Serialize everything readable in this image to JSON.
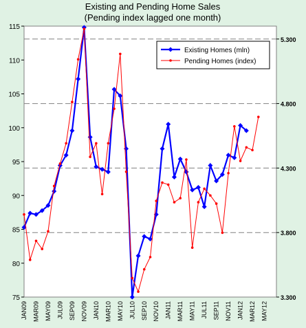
{
  "chart_data": {
    "type": "line",
    "title": "Existing and Pending Home Sales",
    "subtitle": "(Pending index lagged one month)",
    "categories": [
      "JAN09",
      null,
      "MAR09",
      null,
      "MAY09",
      null,
      "JUL09",
      null,
      "SEP09",
      null,
      "NOV09",
      null,
      "JAN10",
      null,
      "MAR10",
      null,
      "MAY10",
      null,
      "JUL10",
      null,
      "SEP10",
      null,
      "NOV10",
      null,
      "JAN11",
      null,
      "MAR11",
      null,
      "MAY11",
      null,
      "JUL11",
      null,
      "SEP11",
      null,
      "NOV11",
      null,
      "JAN12",
      null,
      "MAR12",
      null,
      "MAY12",
      null
    ],
    "series": [
      {
        "name": "Existing Homes (mln)",
        "color": "#0000ff",
        "axis": "y2",
        "values": [
          3.84,
          3.95,
          3.94,
          3.97,
          4.01,
          4.12,
          4.32,
          4.4,
          4.59,
          4.99,
          5.39,
          4.54,
          4.31,
          4.29,
          4.27,
          4.91,
          4.86,
          4.45,
          3.3,
          3.62,
          3.77,
          3.75,
          3.94,
          4.45,
          4.64,
          4.23,
          4.37,
          4.27,
          4.13,
          4.15,
          4.0,
          4.32,
          4.2,
          4.25,
          4.4,
          4.38,
          4.63,
          4.59,
          null,
          null,
          null,
          null
        ]
      },
      {
        "name": "Pending Homes (index)",
        "color": "#ff0000",
        "values": [
          87.2,
          80.5,
          83.3,
          82.1,
          84.7,
          91.4,
          94.7,
          97.7,
          103.8,
          110.1,
          114.6,
          95.7,
          97.7,
          90.2,
          97.7,
          102.8,
          110.9,
          93.5,
          77.8,
          75.8,
          79.1,
          80.9,
          89.2,
          91.9,
          91.6,
          89.0,
          89.6,
          95.3,
          82.3,
          89.0,
          91.0,
          90.0,
          88.8,
          84.5,
          93.3,
          100.2,
          95.1,
          97.1,
          96.7,
          101.6,
          null,
          null
        ]
      }
    ],
    "ylim": [
      75,
      115
    ],
    "yticks": [
      75,
      80,
      85,
      90,
      95,
      100,
      105,
      110,
      115
    ],
    "y2lim": [
      3.3,
      5.4
    ],
    "y2ticks": [
      {
        "value": 3.3,
        "label": "3.300"
      },
      {
        "value": 3.8,
        "label": "3.800"
      },
      {
        "value": 4.3,
        "label": "4.300"
      },
      {
        "value": 4.8,
        "label": "4.800"
      },
      {
        "value": 5.3,
        "label": "5.300"
      }
    ],
    "grid": true,
    "legend": "upper right"
  }
}
